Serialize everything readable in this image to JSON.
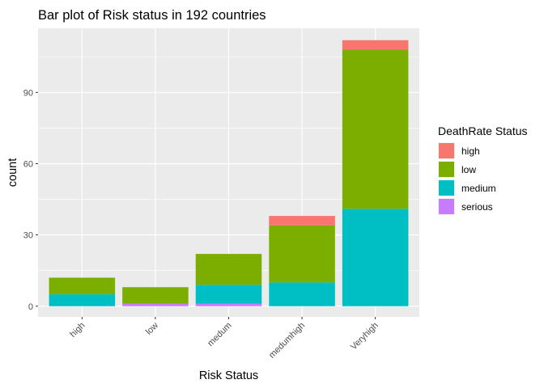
{
  "chart_data": {
    "type": "bar",
    "stacked": true,
    "title": "Bar plot of Risk status in 192 countries",
    "xlabel": "Risk Status",
    "ylabel": "count",
    "categories": [
      "high",
      "low",
      "medum",
      "medumhigh",
      "Veryhigh"
    ],
    "series": [
      {
        "name": "high",
        "color": "#F8766D",
        "values": [
          0,
          0,
          0,
          4,
          4
        ]
      },
      {
        "name": "low",
        "color": "#7CAE00",
        "values": [
          7,
          7,
          13,
          24,
          67
        ]
      },
      {
        "name": "medium",
        "color": "#00BFC4",
        "values": [
          5,
          0,
          8,
          10,
          41
        ]
      },
      {
        "name": "serious",
        "color": "#C77CFF",
        "values": [
          0,
          1,
          1,
          0,
          0
        ]
      }
    ],
    "stack_order_bottom_to_top": [
      "serious",
      "medium",
      "low",
      "high"
    ],
    "ylim": [
      -4.5,
      117
    ],
    "yticks": [
      0,
      30,
      60,
      90
    ],
    "ytick_labels": [
      "0",
      "30",
      "60",
      "90"
    ],
    "grid": true,
    "legend": {
      "title": "DeathRate Status",
      "position": "right"
    },
    "panel_background": "#EBEBEB",
    "grid_color": "#FFFFFF"
  }
}
